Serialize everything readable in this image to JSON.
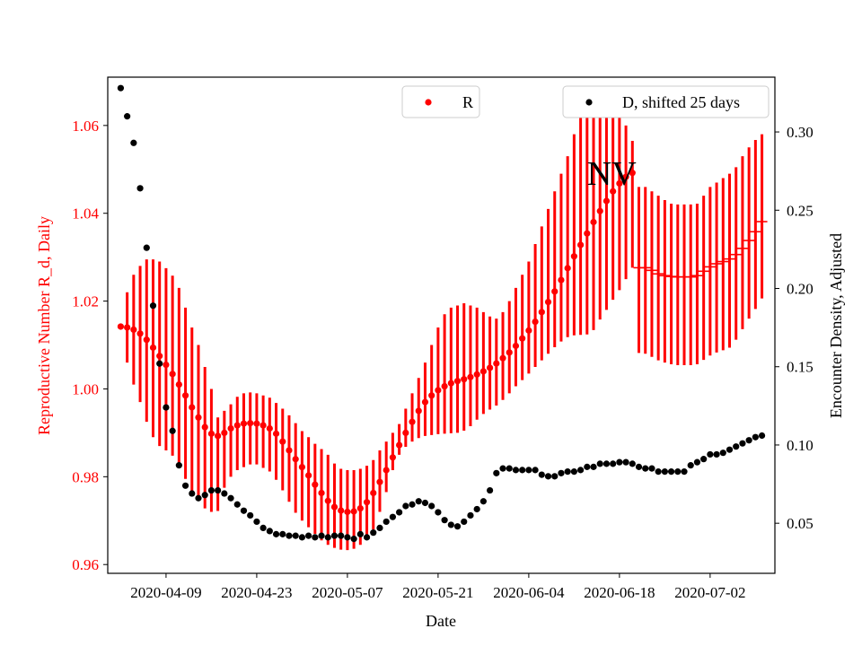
{
  "chart_data": {
    "type": "scatter",
    "annotation": "NV",
    "xlabel": "Date",
    "ylabel_left": "Reproductive Number R_d, Daily",
    "ylabel_right": "Encounter Density, Adjusted",
    "x_start": "2020-04-02",
    "x_end": "2020-07-08",
    "xlim": [
      "2020-03-31",
      "2020-07-12"
    ],
    "ylim_left": [
      0.958,
      1.071
    ],
    "ylim_right": [
      0.018,
      0.335
    ],
    "x_ticks": [
      "2020-04-09",
      "2020-04-23",
      "2020-05-07",
      "2020-05-21",
      "2020-06-04",
      "2020-06-18",
      "2020-07-02"
    ],
    "y_ticks_left": [
      0.96,
      0.98,
      1.0,
      1.02,
      1.04,
      1.06
    ],
    "y_ticks_left_labels": [
      "0.96",
      "0.98",
      "1.00",
      "1.02",
      "1.04",
      "1.06"
    ],
    "y_ticks_right": [
      0.05,
      0.1,
      0.15,
      0.2,
      0.25,
      0.3
    ],
    "y_ticks_right_labels": [
      "0.05",
      "0.10",
      "0.15",
      "0.20",
      "0.25",
      "0.30"
    ],
    "colors": {
      "R": "#ff0000",
      "D": "#000000",
      "left_axis": "#ff0000"
    },
    "grid": false,
    "series": [
      {
        "name": "R",
        "axis": "left",
        "color": "#ff0000",
        "marker": "dot",
        "values": [
          1.0142,
          1.014,
          1.0135,
          1.0126,
          1.0112,
          1.0094,
          1.0075,
          1.0055,
          1.0034,
          1.001,
          0.9985,
          0.9958,
          0.9935,
          0.9913,
          0.9898,
          0.9893,
          0.99,
          0.991,
          0.9917,
          0.9921,
          0.9922,
          0.9921,
          0.9917,
          0.991,
          0.9898,
          0.988,
          0.986,
          0.984,
          0.9822,
          0.9803,
          0.9782,
          0.9763,
          0.9745,
          0.9731,
          0.9723,
          0.972,
          0.9721,
          0.9728,
          0.9742,
          0.9763,
          0.9788,
          0.9815,
          0.9844,
          0.9872,
          0.99,
          0.9925,
          0.995,
          0.997,
          0.9985,
          0.9997,
          1.0006,
          1.0013,
          1.0018,
          1.0022,
          1.0027,
          1.0033,
          1.004,
          1.0048,
          1.0058,
          1.007,
          1.0083,
          1.0098,
          1.0115,
          1.0133,
          1.0153,
          1.0175,
          1.0198,
          1.0222,
          1.0248,
          1.0275,
          1.0302,
          1.0328,
          1.0354,
          1.038,
          1.0405,
          1.0428,
          1.045,
          1.0468,
          1.0483,
          1.0492,
          1.0276,
          1.0276,
          1.027,
          1.0262,
          1.0258,
          1.0256,
          1.0255,
          1.0255,
          1.0255,
          1.0258,
          1.0268,
          1.0278,
          1.0285,
          1.029,
          1.0296,
          1.0306,
          1.032,
          1.0338,
          1.0358,
          1.0381
        ],
        "err_low": [
          1.0142,
          1.006,
          1.001,
          0.997,
          0.9925,
          0.989,
          0.987,
          0.986,
          0.9848,
          0.9825,
          0.9795,
          0.9768,
          0.9745,
          0.9728,
          0.972,
          0.9722,
          0.9775,
          0.98,
          0.9815,
          0.9822,
          0.9828,
          0.9828,
          0.982,
          0.9812,
          0.9793,
          0.9769,
          0.9743,
          0.9718,
          0.97,
          0.9685,
          0.967,
          0.9655,
          0.9645,
          0.9638,
          0.9634,
          0.9633,
          0.9636,
          0.9645,
          0.966,
          0.968,
          0.972,
          0.9765,
          0.9815,
          0.985,
          0.9868,
          0.988,
          0.9888,
          0.9893,
          0.9895,
          0.9897,
          0.9898,
          0.9899,
          0.99,
          0.9905,
          0.9915,
          0.993,
          0.9943,
          0.9953,
          0.9962,
          0.9975,
          0.999,
          1.0006,
          1.002,
          1.0035,
          1.005,
          1.0065,
          1.008,
          1.0095,
          1.0108,
          1.0118,
          1.0122,
          1.0123,
          1.0124,
          1.0134,
          1.0158,
          1.018,
          1.0203,
          1.0225,
          1.025,
          1.0276,
          1.0082,
          1.008,
          1.0073,
          1.0065,
          1.006,
          1.0056,
          1.0054,
          1.0054,
          1.0054,
          1.0056,
          1.0066,
          1.0076,
          1.0083,
          1.0088,
          1.0094,
          1.0112,
          1.0136,
          1.016,
          1.0182,
          1.0206
        ],
        "err_high": [
          1.0142,
          1.022,
          1.026,
          1.028,
          1.0295,
          1.0295,
          1.029,
          1.0275,
          1.0258,
          1.023,
          1.0185,
          1.014,
          1.01,
          1.005,
          1.0,
          0.9935,
          0.995,
          0.9965,
          0.9982,
          0.999,
          0.9992,
          0.999,
          0.9985,
          0.998,
          0.9968,
          0.9955,
          0.994,
          0.9922,
          0.9904,
          0.989,
          0.9875,
          0.9863,
          0.985,
          0.983,
          0.9818,
          0.9815,
          0.9815,
          0.9818,
          0.9825,
          0.9838,
          0.986,
          0.988,
          0.99,
          0.992,
          0.9955,
          0.999,
          1.0025,
          1.006,
          1.01,
          1.014,
          1.017,
          1.0185,
          1.019,
          1.0195,
          1.019,
          1.0185,
          1.0175,
          1.0165,
          1.016,
          1.0175,
          1.02,
          1.023,
          1.026,
          1.029,
          1.033,
          1.037,
          1.041,
          1.045,
          1.049,
          1.053,
          1.058,
          1.062,
          1.064,
          1.064,
          1.064,
          1.0645,
          1.064,
          1.062,
          1.06,
          1.0565,
          1.046,
          1.046,
          1.045,
          1.044,
          1.043,
          1.0422,
          1.042,
          1.042,
          1.042,
          1.0422,
          1.044,
          1.046,
          1.047,
          1.048,
          1.049,
          1.0505,
          1.053,
          1.055,
          1.0567,
          1.058
        ]
      },
      {
        "name": "D, shifted 25 days",
        "axis": "right",
        "color": "#000000",
        "marker": "dot",
        "values": [
          0.328,
          0.31,
          0.293,
          0.264,
          0.226,
          0.189,
          0.152,
          0.124,
          0.109,
          0.087,
          0.074,
          0.069,
          0.066,
          0.068,
          0.071,
          0.071,
          0.069,
          0.066,
          0.062,
          0.058,
          0.055,
          0.051,
          0.047,
          0.045,
          0.043,
          0.043,
          0.042,
          0.042,
          0.041,
          0.042,
          0.041,
          0.042,
          0.041,
          0.042,
          0.042,
          0.041,
          0.04,
          0.043,
          0.041,
          0.044,
          0.047,
          0.051,
          0.054,
          0.057,
          0.061,
          0.062,
          0.064,
          0.063,
          0.061,
          0.057,
          0.052,
          0.049,
          0.048,
          0.051,
          0.055,
          0.059,
          0.064,
          0.071,
          0.082,
          0.085,
          0.085,
          0.084,
          0.084,
          0.084,
          0.084,
          0.081,
          0.08,
          0.08,
          0.082,
          0.083,
          0.083,
          0.084,
          0.086,
          0.086,
          0.088,
          0.088,
          0.088,
          0.089,
          0.089,
          0.088,
          0.086,
          0.085,
          0.085,
          0.083,
          0.083,
          0.083,
          0.083,
          0.083,
          0.087,
          0.089,
          0.091,
          0.094,
          0.094,
          0.095,
          0.097,
          0.099,
          0.101,
          0.103,
          0.105,
          0.106
        ]
      }
    ],
    "legend": [
      {
        "label": "R",
        "color": "#ff0000",
        "placement": "upper-center"
      },
      {
        "label": "D, shifted 25 days",
        "color": "#000000",
        "placement": "upper-right"
      }
    ]
  }
}
